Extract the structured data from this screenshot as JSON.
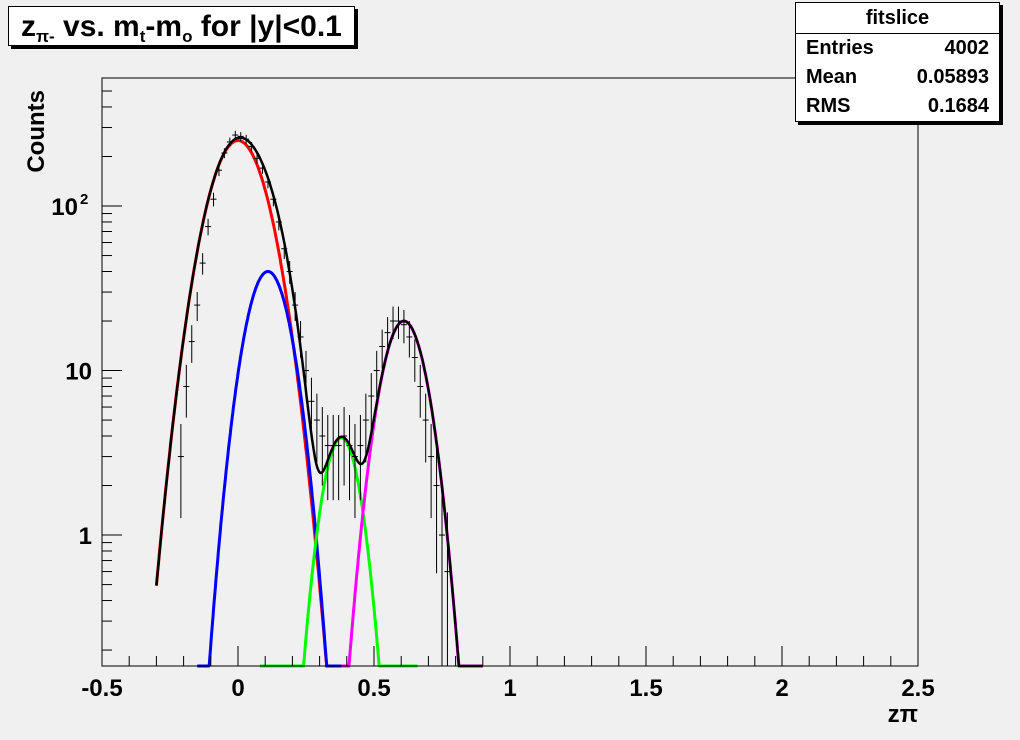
{
  "title": {
    "prefix": "z",
    "sub1": "π-",
    "mid1": " vs. m",
    "sub2": "t",
    "mid2": "-m",
    "sub3": "o",
    "suffix": " for |y|<0.1"
  },
  "stats": {
    "name": "fitslice",
    "rows": [
      {
        "label": "Entries",
        "value": "4002"
      },
      {
        "label": "Mean",
        "value": "0.05893"
      },
      {
        "label": "RMS",
        "value": "0.1684"
      }
    ]
  },
  "colors": {
    "frame_bg": "#f0f0f0",
    "plot_bg": "#f0f0f0",
    "data": "#000000",
    "total_fit": "#000000",
    "peak1": "#ff0000",
    "peak2": "#0000ff",
    "peak3": "#00ff00",
    "peak4": "#ff00ff"
  },
  "chart_data": {
    "type": "scatter",
    "title": "zπ- vs. mt-mo for |y|<0.1",
    "xlabel": "zπ",
    "ylabel": "Counts",
    "xlim": [
      -0.5,
      2.5
    ],
    "ylim": [
      0.16,
      600
    ],
    "yscale": "log",
    "grid": false,
    "x_ticks": [
      {
        "v": -0.5,
        "label": "-0.5"
      },
      {
        "v": 0,
        "label": "0"
      },
      {
        "v": 0.5,
        "label": "0.5"
      },
      {
        "v": 1,
        "label": "1"
      },
      {
        "v": 1.5,
        "label": "1.5"
      },
      {
        "v": 2,
        "label": "2"
      },
      {
        "v": 2.5,
        "label": "2.5"
      }
    ],
    "y_ticks": [
      {
        "v": 1,
        "label": "1"
      },
      {
        "v": 10,
        "label": "10"
      },
      {
        "v": 100,
        "label": "10",
        "sup": "2"
      }
    ],
    "series": [
      {
        "kind": "points",
        "x": [
          -0.21,
          -0.19,
          -0.17,
          -0.15,
          -0.13,
          -0.11,
          -0.09,
          -0.07,
          -0.05,
          -0.03,
          -0.01,
          0.01,
          0.03,
          0.05,
          0.07,
          0.09,
          0.11,
          0.13,
          0.15,
          0.17,
          0.19,
          0.21,
          0.23,
          0.25,
          0.27,
          0.29,
          0.31,
          0.33,
          0.35,
          0.37,
          0.39,
          0.41,
          0.43,
          0.45,
          0.47,
          0.49,
          0.51,
          0.53,
          0.55,
          0.57,
          0.59,
          0.61,
          0.63,
          0.65,
          0.67,
          0.69,
          0.71,
          0.73,
          0.75,
          0.77
        ],
        "y": [
          3,
          8,
          15,
          25,
          45,
          75,
          110,
          165,
          210,
          245,
          270,
          265,
          255,
          230,
          195,
          170,
          140,
          110,
          80,
          55,
          40,
          25,
          16,
          10,
          6.5,
          5,
          4,
          3.5,
          3.5,
          3.5,
          4,
          3.5,
          3,
          3.5,
          5,
          7,
          10,
          14,
          17,
          20,
          20,
          19,
          16,
          12,
          8,
          5,
          3,
          2,
          1,
          0.6
        ]
      },
      {
        "kind": "curve",
        "name": "peak1",
        "amp": 250,
        "mu": 0.0,
        "sigma": 0.085,
        "xmin": -0.3,
        "xmax": 0.35
      },
      {
        "kind": "curve",
        "name": "peak2",
        "amp": 40,
        "mu": 0.11,
        "sigma": 0.065,
        "xmin": -0.15,
        "xmax": 0.38
      },
      {
        "kind": "curve",
        "name": "peak3",
        "amp": 3.9,
        "mu": 0.38,
        "sigma": 0.055,
        "xmin": 0.08,
        "xmax": 0.66
      },
      {
        "kind": "curve",
        "name": "peak4",
        "amp": 20,
        "mu": 0.61,
        "sigma": 0.065,
        "xmin": 0.38,
        "xmax": 0.9
      },
      {
        "kind": "total",
        "name": "total_fit",
        "xmin": -0.3,
        "xmax": 0.9
      }
    ]
  }
}
